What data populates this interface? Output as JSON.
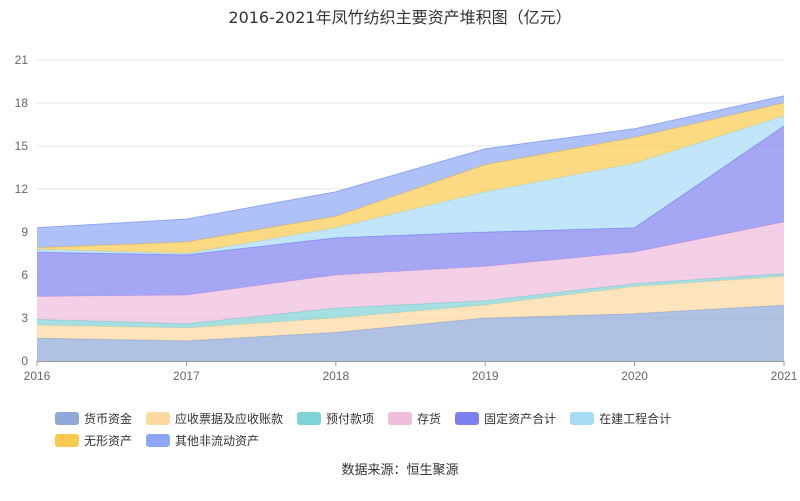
{
  "title": "2016-2021年凤竹纺织主要资产堆积图（亿元）",
  "source": "数据来源：恒生聚源",
  "chart_data": {
    "type": "area",
    "stacked": true,
    "title": "2016-2021年凤竹纺织主要资产堆积图（亿元）",
    "x": [
      "2016",
      "2017",
      "2018",
      "2019",
      "2020",
      "2021"
    ],
    "ylim": [
      0,
      21
    ],
    "yticks": [
      0,
      3,
      6,
      9,
      12,
      15,
      18,
      21
    ],
    "grid": true,
    "legend_position": "bottom",
    "series": [
      {
        "name": "货币资金",
        "color": "#8fa8d8",
        "values": [
          1.6,
          1.4,
          2.0,
          3.0,
          3.3,
          3.9
        ]
      },
      {
        "name": "应收票据及应收账款",
        "color": "#fcd9a0",
        "values": [
          0.9,
          0.9,
          1.0,
          0.9,
          1.9,
          2.0
        ]
      },
      {
        "name": "预付款项",
        "color": "#7fd2d6",
        "values": [
          0.4,
          0.3,
          0.7,
          0.3,
          0.2,
          0.2
        ]
      },
      {
        "name": "存货",
        "color": "#f0bcdc",
        "values": [
          1.6,
          2.0,
          2.3,
          2.4,
          2.2,
          3.6
        ]
      },
      {
        "name": "固定资产合计",
        "color": "#7f80ef",
        "values": [
          3.1,
          2.8,
          2.6,
          2.4,
          1.7,
          6.7
        ]
      },
      {
        "name": "在建工程合计",
        "color": "#a8dcf6",
        "values": [
          0.2,
          0.1,
          0.7,
          2.8,
          4.5,
          0.7
        ]
      },
      {
        "name": "无形资产",
        "color": "#fbc94e",
        "values": [
          0.1,
          0.8,
          0.8,
          1.9,
          1.8,
          0.9
        ]
      },
      {
        "name": "其他非流动资产",
        "color": "#8da6f7",
        "values": [
          1.4,
          1.6,
          1.7,
          1.1,
          0.6,
          0.5
        ]
      }
    ]
  }
}
